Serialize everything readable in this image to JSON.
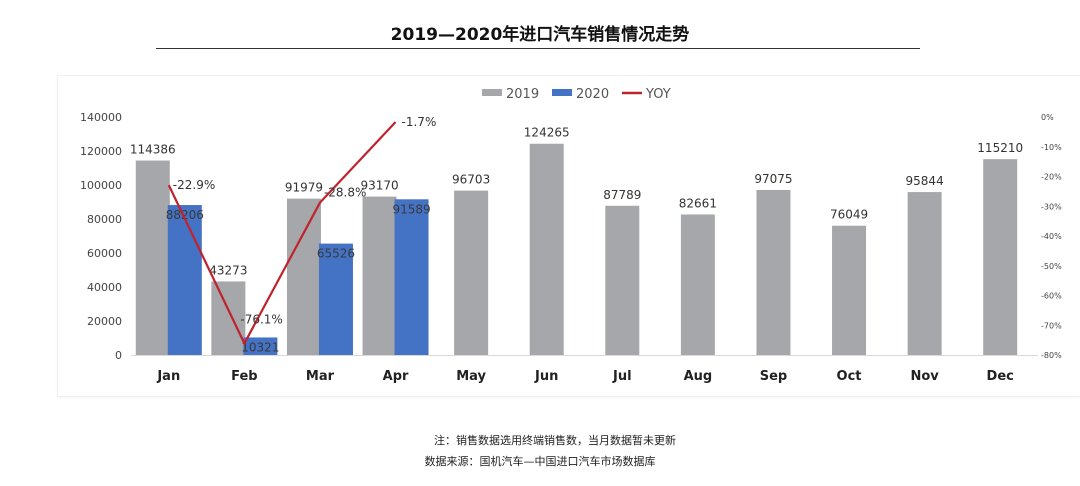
{
  "page": {
    "title": "2019—2020年进口汽车销售情况走势",
    "note": "注：销售数据选用终端销售数，当月数据暂未更新",
    "source": "数据来源：国机汽车—中国进口汽车市场数据库"
  },
  "chart_data": {
    "type": "bar",
    "title": "",
    "categories": [
      "Jan",
      "Feb",
      "Mar",
      "Apr",
      "May",
      "Jun",
      "Jul",
      "Aug",
      "Sep",
      "Oct",
      "Nov",
      "Dec"
    ],
    "series": [
      {
        "name": "2019",
        "type": "bar",
        "color": "#a5a7ab",
        "values": [
          114386,
          43273,
          91979,
          93170,
          96703,
          124265,
          87789,
          82661,
          97075,
          76049,
          95844,
          115210
        ]
      },
      {
        "name": "2020",
        "type": "bar",
        "color": "#4472c4",
        "values": [
          88206,
          10321,
          65526,
          91589,
          null,
          null,
          null,
          null,
          null,
          null,
          null,
          null
        ]
      },
      {
        "name": "YOY",
        "type": "line",
        "axis": "right",
        "color": "#c0232d",
        "values": [
          -22.9,
          -76.1,
          -28.8,
          -1.7,
          null,
          null,
          null,
          null,
          null,
          null,
          null,
          null
        ],
        "labels": [
          "-22.9%",
          "-76.1%",
          "-28.8%",
          "-1.7%"
        ]
      }
    ],
    "y_left": {
      "min": 0,
      "max": 140000,
      "ticks": [
        "0",
        "20000",
        "40000",
        "60000",
        "80000",
        "100000",
        "120000",
        "140000"
      ]
    },
    "y_right": {
      "min": -80,
      "max": 0,
      "ticks": [
        "0%",
        "-10%",
        "-20%",
        "-30%",
        "-40%",
        "-50%",
        "-60%",
        "-70%",
        "-80%"
      ]
    },
    "legend": {
      "position": "top-center",
      "items": [
        {
          "label": "2019",
          "color": "#a5a7ab",
          "kind": "bar"
        },
        {
          "label": "2020",
          "color": "#4472c4",
          "kind": "bar"
        },
        {
          "label": "YOY",
          "color": "#c0232d",
          "kind": "line"
        }
      ]
    },
    "grid": false
  }
}
